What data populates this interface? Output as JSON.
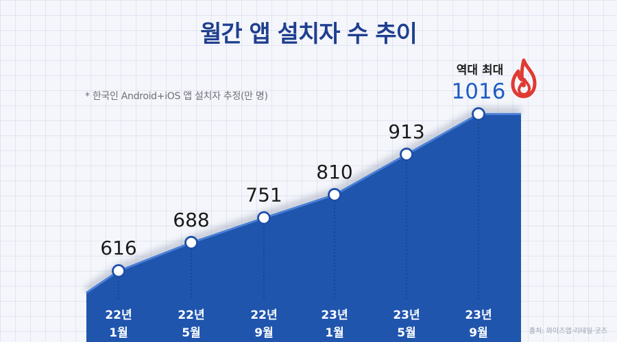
{
  "header": {
    "title": "월간 앱 설치자 수 추이",
    "note": "* 한국인 Android+iOS 앱 설치자 추정(만 명)",
    "source": "출처: 와이즈앱·리테일·굿즈"
  },
  "highlight": {
    "label": "역대 최대",
    "icon": "flame-icon",
    "color": "#e03a32"
  },
  "colors": {
    "area": "#2055ad",
    "line": "#4a7fd6",
    "title": "#1f3f8f",
    "highlight_value": "#1f5cc2"
  },
  "chart_data": {
    "type": "area",
    "title": "월간 앱 설치자 수 추이",
    "categories": [
      "22년 1월",
      "22년 5월",
      "22년 9월",
      "23년 1월",
      "23년 5월",
      "23년 9월"
    ],
    "category_lines": [
      [
        "22년",
        "1월"
      ],
      [
        "22년",
        "5월"
      ],
      [
        "22년",
        "9월"
      ],
      [
        "23년",
        "1월"
      ],
      [
        "23년",
        "5월"
      ],
      [
        "23년",
        "9월"
      ]
    ],
    "values": [
      616,
      688,
      751,
      810,
      913,
      1016
    ],
    "unit": "만 명",
    "data_labels": [
      "616",
      "688",
      "751",
      "810",
      "913",
      "1016"
    ],
    "peak_label": "역대 최대",
    "grid": true,
    "legend": "none"
  }
}
